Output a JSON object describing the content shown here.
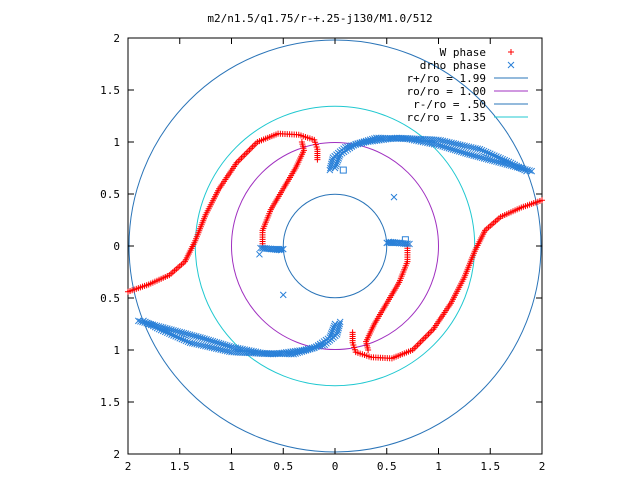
{
  "chart_data": {
    "type": "scatter",
    "title": "m2/n1.5/q1.75/r-+.25-j130/M1.0/512",
    "xlim": [
      -2,
      2
    ],
    "ylim": [
      -2,
      2
    ],
    "grid": false,
    "legend_position": "top-right",
    "x_ticks": [
      {
        "value": -2,
        "label": "2"
      },
      {
        "value": -1.5,
        "label": "1.5"
      },
      {
        "value": -1,
        "label": "1"
      },
      {
        "value": -0.5,
        "label": "0.5"
      },
      {
        "value": 0,
        "label": "0"
      },
      {
        "value": 0.5,
        "label": "0.5"
      },
      {
        "value": 1,
        "label": "1"
      },
      {
        "value": 1.5,
        "label": "1.5"
      },
      {
        "value": 2,
        "label": "2"
      }
    ],
    "y_ticks": [
      {
        "value": 2,
        "label": "2"
      },
      {
        "value": 1.5,
        "label": "1.5"
      },
      {
        "value": 1,
        "label": "1"
      },
      {
        "value": 0.5,
        "label": "0.5"
      },
      {
        "value": 0,
        "label": "0"
      },
      {
        "value": -0.5,
        "label": "0.5"
      },
      {
        "value": -1,
        "label": "1"
      },
      {
        "value": -1.5,
        "label": "1.5"
      },
      {
        "value": -2,
        "label": "2"
      }
    ],
    "circles": [
      {
        "name": "r+/ro = 1.99",
        "radius": 1.99,
        "color": "#2a74b8"
      },
      {
        "name": "ro/ro = 1.00",
        "radius": 1.0,
        "color": "#a030c0"
      },
      {
        "name": "r-/ro = .50",
        "radius": 0.5,
        "color": "#2a74b8"
      },
      {
        "name": "rc/ro = 1.35",
        "radius": 1.35,
        "color": "#20c8d0"
      }
    ],
    "series": [
      {
        "name": "W phase",
        "marker": "+",
        "color": "#ff0000",
        "arms": [
          [
            [
              -2.0,
              -0.44
            ],
            [
              -1.8,
              -0.37
            ],
            [
              -1.6,
              -0.28
            ],
            [
              -1.45,
              -0.15
            ],
            [
              -1.35,
              0.05
            ],
            [
              -1.25,
              0.3
            ],
            [
              -1.12,
              0.55
            ],
            [
              -0.95,
              0.8
            ],
            [
              -0.75,
              1.0
            ],
            [
              -0.55,
              1.08
            ],
            [
              -0.35,
              1.07
            ],
            [
              -0.2,
              1.02
            ],
            [
              -0.17,
              0.93
            ],
            [
              -0.17,
              0.83
            ]
          ],
          [
            [
              -0.7,
              0.0
            ],
            [
              -0.7,
              0.15
            ],
            [
              -0.62,
              0.35
            ],
            [
              -0.5,
              0.55
            ],
            [
              -0.38,
              0.75
            ],
            [
              -0.3,
              0.92
            ],
            [
              -0.32,
              1.0
            ]
          ]
        ]
      },
      {
        "name": "drho phase",
        "marker": "x",
        "color": "#2a80d8",
        "arms": [
          [
            [
              -0.05,
              0.73
            ],
            [
              -0.02,
              0.85
            ],
            [
              0.1,
              0.95
            ],
            [
              0.3,
              1.0
            ],
            [
              0.6,
              1.04
            ],
            [
              1.0,
              1.02
            ],
            [
              1.4,
              0.93
            ],
            [
              1.7,
              0.8
            ],
            [
              1.85,
              0.72
            ]
          ],
          [
            [
              -1.9,
              -0.72
            ],
            [
              -1.6,
              -0.8
            ],
            [
              -1.3,
              -0.88
            ],
            [
              -1.0,
              -0.97
            ],
            [
              -0.7,
              -1.03
            ],
            [
              -0.4,
              -1.04
            ],
            [
              -0.2,
              -0.98
            ],
            [
              -0.05,
              -0.88
            ],
            [
              0.0,
              -0.75
            ]
          ],
          [
            [
              0.5,
              0.03
            ],
            [
              0.6,
              0.03
            ],
            [
              0.7,
              0.02
            ]
          ],
          [
            [
              -0.72,
              -0.02
            ],
            [
              -0.62,
              -0.03
            ],
            [
              -0.52,
              -0.04
            ]
          ]
        ],
        "outliers": [
          [
            0.57,
            0.47
          ],
          [
            0.68,
            0.06
          ],
          [
            -0.5,
            -0.47
          ],
          [
            0.08,
            0.73
          ],
          [
            -0.73,
            -0.08
          ]
        ]
      }
    ],
    "mirrored_arm_note": ""
  }
}
